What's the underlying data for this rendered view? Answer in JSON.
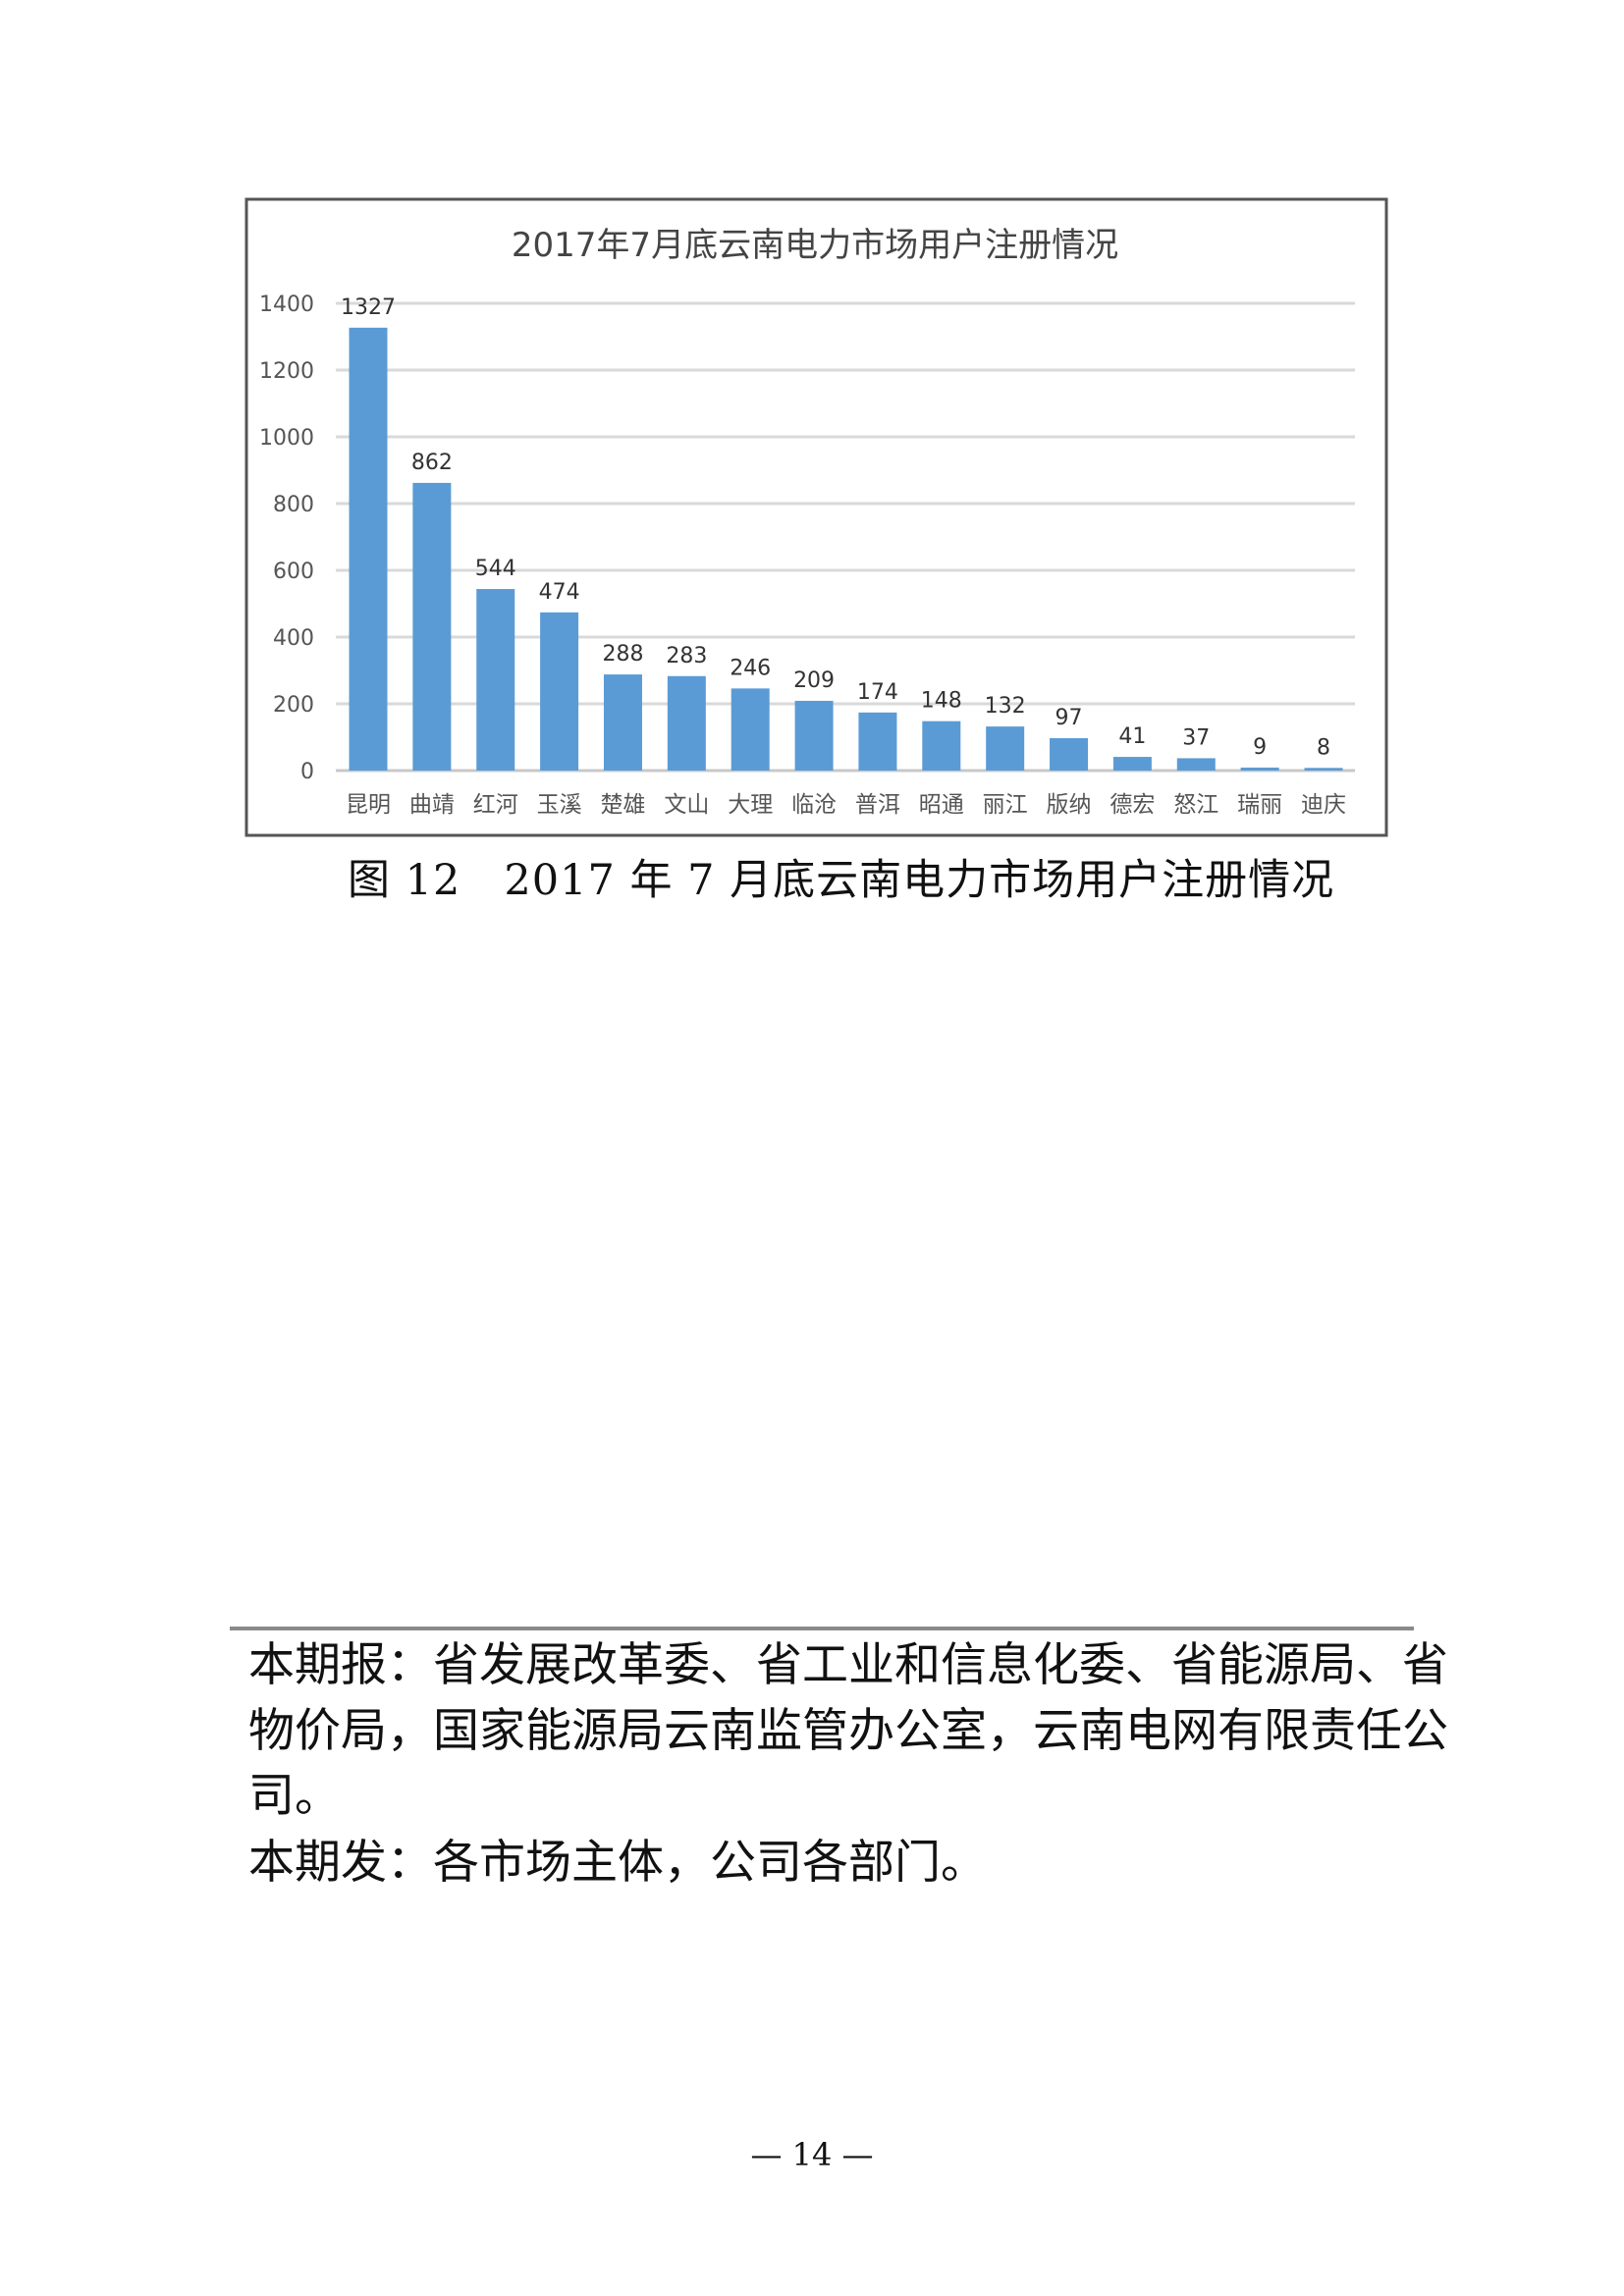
{
  "chart_data": {
    "type": "bar",
    "title": "2017年7月底云南电力市场用户注册情况",
    "categories": [
      "昆明",
      "曲靖",
      "红河",
      "玉溪",
      "楚雄",
      "文山",
      "大理",
      "临沧",
      "普洱",
      "昭通",
      "丽江",
      "版纳",
      "德宏",
      "怒江",
      "瑞丽",
      "迪庆"
    ],
    "values": [
      1327,
      862,
      544,
      474,
      288,
      283,
      246,
      209,
      174,
      148,
      132,
      97,
      41,
      37,
      9,
      8
    ],
    "ylim": [
      0,
      1400
    ],
    "yticks": [
      0,
      200,
      400,
      600,
      800,
      1000,
      1200,
      1400
    ],
    "grid": true,
    "bar_color": "#5b9bd5",
    "data_labels": true
  },
  "caption": "图 12　2017 年 7 月底云南电力市场用户注册情况",
  "distribution": {
    "lines": [
      "本期报：省发展改革委、省工业和信息化委、省能源局、省",
      "物价局，国家能源局云南监管办公室，云南电网有限责任公",
      "司。",
      "本期发：各市场主体，公司各部门。"
    ]
  },
  "page_number": "— 14 —"
}
